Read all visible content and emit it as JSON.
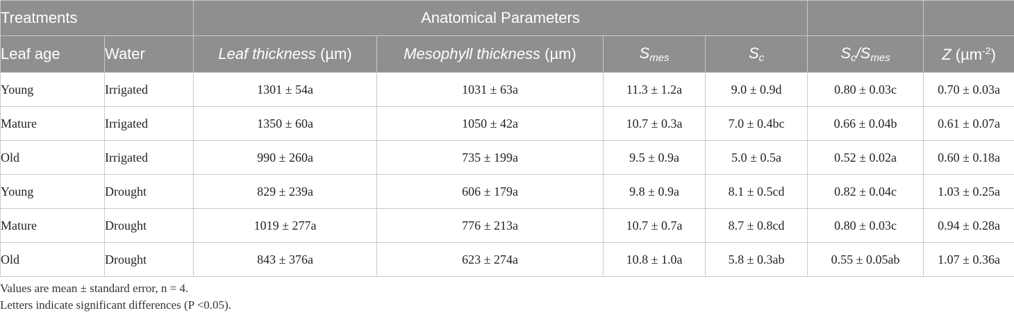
{
  "header": {
    "treatments": "Treatments",
    "anatomical": "Anatomical Parameters",
    "leaf_age": "Leaf age",
    "water": "Water",
    "leaf_thickness_italic": "Leaf thickness",
    "leaf_thickness_unit": " (µm)",
    "mesophyll_italic": "Mesophyll thickness",
    "mesophyll_unit": " (µm)",
    "smes_base": "S",
    "smes_sub": "mes",
    "sc_base": "S",
    "sc_sub": "c",
    "ratio_s1": "S",
    "ratio_c": "c",
    "ratio_slash": "/S",
    "ratio_mes": "mes",
    "z_italic": "Z",
    "z_unit_pre": " (µm",
    "z_sup": "-2",
    "z_unit_post": ")"
  },
  "rows": [
    {
      "age": "Young",
      "water": "Irrigated",
      "leaf": "1301 ± 54a",
      "meso": "1031 ± 63a",
      "smes": "11.3 ± 1.2a",
      "sc": "9.0 ± 0.9d",
      "ratio": "0.80 ± 0.03c",
      "z": "0.70 ± 0.03a"
    },
    {
      "age": "Mature",
      "water": "Irrigated",
      "leaf": "1350 ± 60a",
      "meso": "1050 ± 42a",
      "smes": "10.7 ± 0.3a",
      "sc": "7.0 ± 0.4bc",
      "ratio": "0.66 ± 0.04b",
      "z": "0.61 ± 0.07a"
    },
    {
      "age": "Old",
      "water": "Irrigated",
      "leaf": "990 ± 260a",
      "meso": "735 ± 199a",
      "smes": "9.5 ± 0.9a",
      "sc": "5.0 ± 0.5a",
      "ratio": "0.52 ± 0.02a",
      "z": "0.60 ± 0.18a"
    },
    {
      "age": "Young",
      "water": "Drought",
      "leaf": "829 ± 239a",
      "meso": "606 ± 179a",
      "smes": "9.8 ± 0.9a",
      "sc": "8.1 ± 0.5cd",
      "ratio": "0.82 ± 0.04c",
      "z": "1.03 ± 0.25a"
    },
    {
      "age": "Mature",
      "water": "Drought",
      "leaf": "1019 ± 277a",
      "meso": "776 ± 213a",
      "smes": "10.7 ± 0.7a",
      "sc": "8.7 ± 0.8cd",
      "ratio": "0.80 ± 0.03c",
      "z": "0.94 ± 0.28a"
    },
    {
      "age": "Old",
      "water": "Drought",
      "leaf": "843 ± 376a",
      "meso": "623 ± 274a",
      "smes": "10.8 ± 1.0a",
      "sc": "5.8 ± 0.3ab",
      "ratio": "0.55 ± 0.05ab",
      "z": "1.07 ± 0.36a"
    }
  ],
  "footnotes": {
    "note1": "Values are mean ± standard error, n = 4.",
    "note2": "Letters indicate significant differences (P <0.05)."
  }
}
